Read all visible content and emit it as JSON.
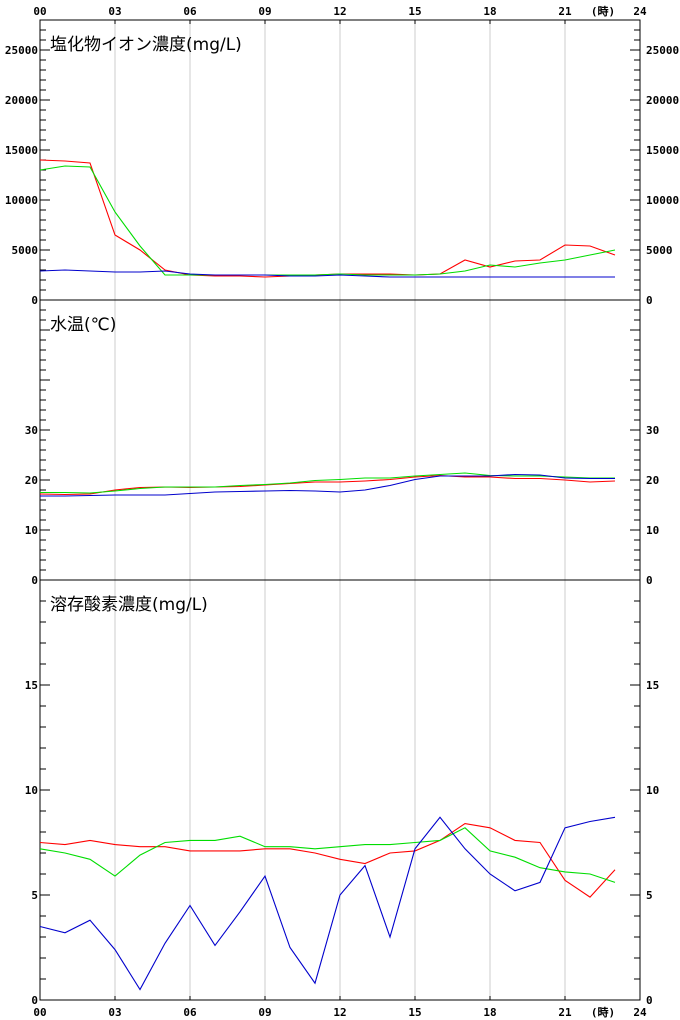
{
  "x_unit": "(時)",
  "x_ticks": [
    "00",
    "03",
    "06",
    "09",
    "12",
    "15",
    "18",
    "21",
    "24"
  ],
  "colors": {
    "red": "#ff0000",
    "green": "#00dd00",
    "blue": "#0000cc",
    "grid": "#cccccc",
    "axis": "#000000"
  },
  "chart_data": [
    {
      "type": "line",
      "title": "塩化物イオン濃度(mg/L)",
      "ylim": [
        0,
        28000
      ],
      "y_ticks": [
        0,
        5000,
        10000,
        15000,
        20000,
        25000
      ],
      "x": [
        0,
        1,
        2,
        3,
        4,
        5,
        6,
        7,
        8,
        9,
        10,
        11,
        12,
        13,
        14,
        15,
        16,
        17,
        18,
        19,
        20,
        21,
        22,
        23
      ],
      "series": [
        {
          "color": "red",
          "values": [
            14000,
            13900,
            13700,
            6500,
            5000,
            3000,
            2500,
            2400,
            2400,
            2300,
            2400,
            2500,
            2600,
            2600,
            2600,
            2500,
            2600,
            4000,
            3300,
            3900,
            4000,
            5500,
            5400,
            4500
          ]
        },
        {
          "color": "green",
          "values": [
            13000,
            13400,
            13300,
            8800,
            5400,
            2500,
            2500,
            2500,
            2500,
            2500,
            2500,
            2500,
            2600,
            2500,
            2500,
            2500,
            2600,
            2900,
            3500,
            3300,
            3700,
            4000,
            4500,
            5000
          ]
        },
        {
          "color": "blue",
          "values": [
            2900,
            3000,
            2900,
            2800,
            2800,
            2900,
            2600,
            2500,
            2500,
            2500,
            2400,
            2400,
            2500,
            2400,
            2300,
            2300,
            2300,
            2300,
            2300,
            2300,
            2300,
            2300,
            2300,
            2300
          ]
        }
      ]
    },
    {
      "type": "line",
      "title": "水温(℃)",
      "ylim": [
        0,
        56
      ],
      "y_ticks": [
        0,
        10,
        20,
        30
      ],
      "x": [
        0,
        1,
        2,
        3,
        4,
        5,
        6,
        7,
        8,
        9,
        10,
        11,
        12,
        13,
        14,
        15,
        16,
        17,
        18,
        19,
        20,
        21,
        22,
        23
      ],
      "series": [
        {
          "color": "red",
          "values": [
            17.2,
            17.1,
            17.2,
            18.0,
            18.5,
            18.6,
            18.5,
            18.6,
            18.7,
            19.0,
            19.3,
            19.6,
            19.6,
            19.8,
            20.1,
            20.6,
            20.9,
            20.6,
            20.6,
            20.3,
            20.3,
            20.0,
            19.6,
            19.8
          ]
        },
        {
          "color": "green",
          "values": [
            17.5,
            17.5,
            17.4,
            17.8,
            18.3,
            18.6,
            18.6,
            18.6,
            18.9,
            19.1,
            19.4,
            19.9,
            20.1,
            20.4,
            20.4,
            20.8,
            21.1,
            21.4,
            20.9,
            20.8,
            20.8,
            20.6,
            20.4,
            20.4
          ]
        },
        {
          "color": "blue",
          "values": [
            16.8,
            16.8,
            16.9,
            17.0,
            17.0,
            17.0,
            17.3,
            17.6,
            17.7,
            17.8,
            17.9,
            17.8,
            17.6,
            18.0,
            18.9,
            20.1,
            20.8,
            20.8,
            20.8,
            21.1,
            21.0,
            20.4,
            20.3,
            20.3
          ]
        }
      ]
    },
    {
      "type": "line",
      "title": "溶存酸素濃度(mg/L)",
      "ylim": [
        0,
        20
      ],
      "y_ticks": [
        0,
        5,
        10,
        15
      ],
      "x": [
        0,
        1,
        2,
        3,
        4,
        5,
        6,
        7,
        8,
        9,
        10,
        11,
        12,
        13,
        14,
        15,
        16,
        17,
        18,
        19,
        20,
        21,
        22,
        23
      ],
      "series": [
        {
          "color": "red",
          "values": [
            7.5,
            7.4,
            7.6,
            7.4,
            7.3,
            7.3,
            7.1,
            7.1,
            7.1,
            7.2,
            7.2,
            7.0,
            6.7,
            6.5,
            7.0,
            7.1,
            7.6,
            8.4,
            8.2,
            7.6,
            7.5,
            5.7,
            4.9,
            6.2
          ]
        },
        {
          "color": "green",
          "values": [
            7.2,
            7.0,
            6.7,
            5.9,
            6.9,
            7.5,
            7.6,
            7.6,
            7.8,
            7.3,
            7.3,
            7.2,
            7.3,
            7.4,
            7.4,
            7.5,
            7.6,
            8.2,
            7.1,
            6.8,
            6.3,
            6.1,
            6.0,
            5.6
          ]
        },
        {
          "color": "blue",
          "values": [
            3.5,
            3.2,
            3.8,
            2.4,
            0.5,
            2.7,
            4.5,
            2.6,
            4.2,
            5.9,
            2.5,
            0.8,
            5.0,
            6.4,
            3.0,
            7.2,
            8.7,
            7.2,
            6.0,
            5.2,
            5.6,
            8.2,
            8.5,
            8.7
          ]
        }
      ]
    }
  ]
}
